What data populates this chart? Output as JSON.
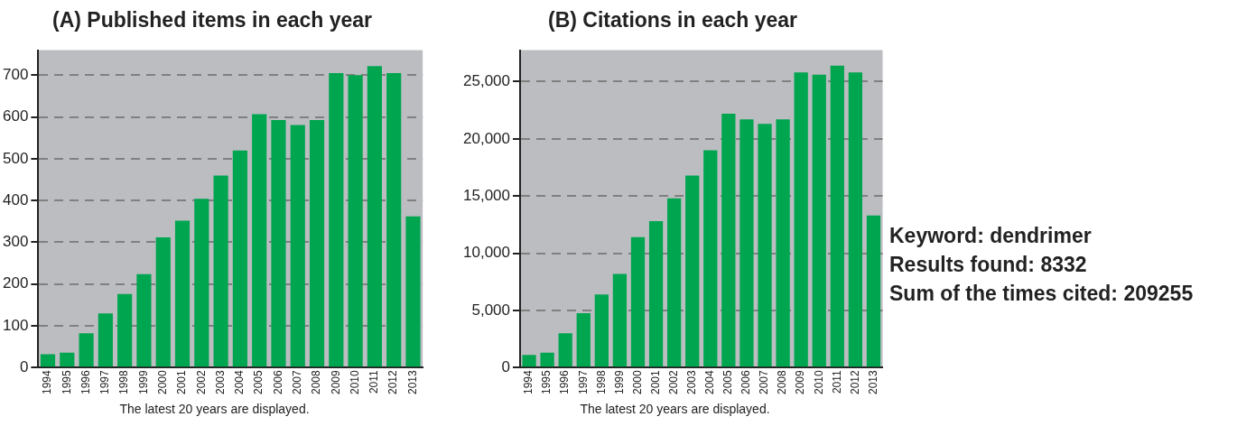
{
  "chart_data": [
    {
      "type": "bar",
      "title": "(A) Published items in each year",
      "categories": [
        "1994",
        "1995",
        "1996",
        "1997",
        "1998",
        "1999",
        "2000",
        "2001",
        "2002",
        "2003",
        "2004",
        "2005",
        "2006",
        "2007",
        "2008",
        "2009",
        "2010",
        "2011",
        "2012",
        "2013"
      ],
      "values": [
        32,
        36,
        82,
        130,
        176,
        224,
        312,
        352,
        404,
        460,
        520,
        607,
        593,
        581,
        593,
        705,
        700,
        722,
        705,
        362
      ],
      "color": "#00a550",
      "ylim": [
        0,
        760
      ],
      "yticks": [
        0,
        100,
        200,
        300,
        400,
        500,
        600,
        700
      ],
      "grid": "y",
      "annotations": [
        "The latest 20 years are displayed."
      ]
    },
    {
      "type": "bar",
      "title": "(B) Citations in each year",
      "categories": [
        "1994",
        "1995",
        "1996",
        "1997",
        "1998",
        "1999",
        "2000",
        "2001",
        "2002",
        "2003",
        "2004",
        "2005",
        "2006",
        "2007",
        "2008",
        "2009",
        "2010",
        "2011",
        "2012",
        "2013"
      ],
      "values": [
        1100,
        1300,
        3000,
        4750,
        6400,
        8200,
        11400,
        12800,
        14800,
        16800,
        19000,
        22200,
        21700,
        21300,
        21700,
        25800,
        25600,
        26400,
        25800,
        13300
      ],
      "color": "#00a550",
      "ylim": [
        0,
        27750
      ],
      "yticks": [
        0,
        {
          "value": 5000,
          "label": "5,000"
        },
        {
          "value": 10000,
          "label": "10,000"
        },
        {
          "value": 15000,
          "label": "15,000"
        },
        {
          "value": 20000,
          "label": "20,000"
        },
        {
          "value": 25000,
          "label": "25,000"
        }
      ],
      "grid": "y",
      "annotations": [
        "The latest 20 years are displayed."
      ]
    },
    {
      "type": "other",
      "annotations": [
        "Keyword: dendrimer",
        "Results found: 8332",
        "Sum of the times cited: 209255"
      ]
    }
  ]
}
